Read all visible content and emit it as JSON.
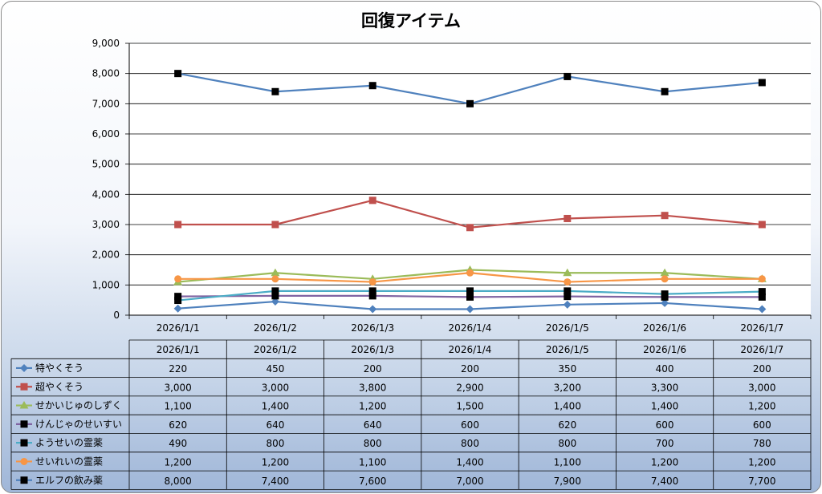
{
  "chart_data": {
    "type": "line",
    "title": "回復アイテム",
    "categories": [
      "2026/1/1",
      "2026/1/2",
      "2026/1/3",
      "2026/1/4",
      "2026/1/5",
      "2026/1/6",
      "2026/1/7"
    ],
    "ylim": [
      0,
      9000
    ],
    "yticks": [
      "0",
      "1,000",
      "2,000",
      "3,000",
      "4,000",
      "5,000",
      "6,000",
      "7,000",
      "8,000",
      "9,000"
    ],
    "grid": true,
    "legend": "data-table",
    "series": [
      {
        "name": "特やくそう",
        "color": "#4f81bd",
        "marker": "diamond",
        "values": [
          220,
          450,
          200,
          200,
          350,
          400,
          200
        ],
        "labels": [
          "220",
          "450",
          "200",
          "200",
          "350",
          "400",
          "200"
        ]
      },
      {
        "name": "超やくそう",
        "color": "#c0504d",
        "marker": "square",
        "values": [
          3000,
          3000,
          3800,
          2900,
          3200,
          3300,
          3000
        ],
        "labels": [
          "3,000",
          "3,000",
          "3,800",
          "2,900",
          "3,200",
          "3,300",
          "3,000"
        ]
      },
      {
        "name": "せかいじゅのしずく",
        "color": "#9bbb59",
        "marker": "triangle",
        "values": [
          1100,
          1400,
          1200,
          1500,
          1400,
          1400,
          1200
        ],
        "labels": [
          "1,100",
          "1,400",
          "1,200",
          "1,500",
          "1,400",
          "1,400",
          "1,200"
        ]
      },
      {
        "name": "けんじゃのせいすい",
        "color": "#8064a2",
        "marker": "blacksquare",
        "values": [
          620,
          640,
          640,
          600,
          620,
          600,
          600
        ],
        "labels": [
          "620",
          "640",
          "640",
          "600",
          "620",
          "600",
          "600"
        ]
      },
      {
        "name": "ようせいの霊薬",
        "color": "#4bacc6",
        "marker": "blacksquare",
        "values": [
          490,
          800,
          800,
          800,
          800,
          700,
          780
        ],
        "labels": [
          "490",
          "800",
          "800",
          "800",
          "800",
          "700",
          "780"
        ]
      },
      {
        "name": "せいれいの霊薬",
        "color": "#f79646",
        "marker": "circle",
        "values": [
          1200,
          1200,
          1100,
          1400,
          1100,
          1200,
          1200
        ],
        "labels": [
          "1,200",
          "1,200",
          "1,100",
          "1,400",
          "1,100",
          "1,200",
          "1,200"
        ]
      },
      {
        "name": "エルフの飲み薬",
        "color": "#4f81bd",
        "marker": "blacksquare",
        "values": [
          8000,
          7400,
          7600,
          7000,
          7900,
          7400,
          7700
        ],
        "labels": [
          "8,000",
          "7,400",
          "7,600",
          "7,000",
          "7,900",
          "7,400",
          "7,700"
        ]
      }
    ]
  }
}
